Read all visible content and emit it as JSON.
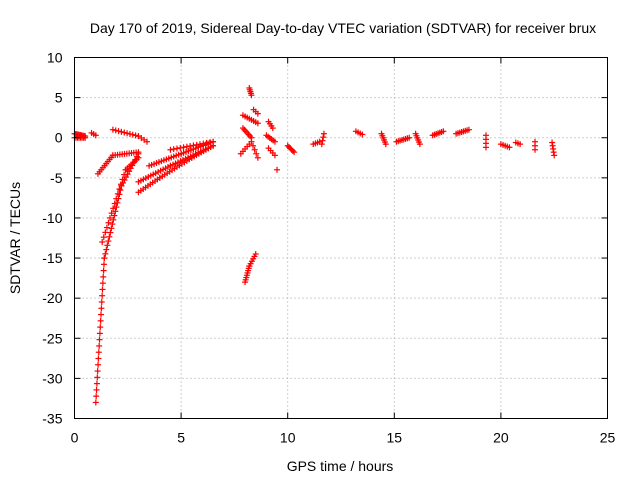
{
  "chart_data": {
    "type": "scatter",
    "title": "Day 170 of 2019, Sidereal Day-to-day VTEC variation (SDTVAR) for receiver brux",
    "xlabel": "GPS time / hours",
    "ylabel": "SDTVAR / TECUs",
    "xlim": [
      0,
      25
    ],
    "ylim": [
      -35,
      10
    ],
    "xticks": [
      0,
      5,
      10,
      15,
      20,
      25
    ],
    "yticks": [
      10,
      5,
      0,
      -5,
      -10,
      -15,
      -20,
      -25,
      -30,
      -35
    ],
    "xtick_labels": [
      "0",
      "5",
      "10",
      "15",
      "20",
      "25"
    ],
    "ytick_labels": [
      "10",
      "5",
      "0",
      "-5",
      "-10",
      "-15",
      "-20",
      "-25",
      "-30",
      "-35"
    ],
    "grid": true,
    "marker": "+",
    "color": "#ff0000",
    "segments": [
      {
        "x0": 0.0,
        "y0": 0.5,
        "x1": 0.5,
        "y1": 0.2,
        "n": 10
      },
      {
        "x0": 0.0,
        "y0": 0.0,
        "x1": 0.5,
        "y1": 0.0,
        "n": 8
      },
      {
        "x0": 0.8,
        "y0": 0.6,
        "x1": 1.0,
        "y1": 0.3,
        "n": 3
      },
      {
        "x0": 1.0,
        "y0": -33.0,
        "x1": 1.4,
        "y1": -15.0,
        "n": 24
      },
      {
        "x0": 1.4,
        "y0": -15.0,
        "x1": 2.2,
        "y1": -6.0,
        "n": 18
      },
      {
        "x0": 2.2,
        "y0": -6.0,
        "x1": 3.0,
        "y1": -2.0,
        "n": 12
      },
      {
        "x0": 1.3,
        "y0": -13.0,
        "x1": 2.4,
        "y1": -4.0,
        "n": 16
      },
      {
        "x0": 2.4,
        "y0": -4.0,
        "x1": 3.0,
        "y1": -2.5,
        "n": 8
      },
      {
        "x0": 1.1,
        "y0": -4.5,
        "x1": 1.8,
        "y1": -2.2,
        "n": 10
      },
      {
        "x0": 1.8,
        "y0": -2.2,
        "x1": 3.0,
        "y1": -1.8,
        "n": 12
      },
      {
        "x0": 1.8,
        "y0": 1.0,
        "x1": 3.0,
        "y1": 0.2,
        "n": 10
      },
      {
        "x0": 3.0,
        "y0": 0.2,
        "x1": 3.4,
        "y1": -0.5,
        "n": 4
      },
      {
        "x0": 3.0,
        "y0": -6.8,
        "x1": 4.0,
        "y1": -5.0,
        "n": 10
      },
      {
        "x0": 4.0,
        "y0": -5.0,
        "x1": 5.5,
        "y1": -2.5,
        "n": 14
      },
      {
        "x0": 5.5,
        "y0": -2.5,
        "x1": 6.5,
        "y1": -1.0,
        "n": 10
      },
      {
        "x0": 3.0,
        "y0": -5.5,
        "x1": 4.5,
        "y1": -3.5,
        "n": 14
      },
      {
        "x0": 4.5,
        "y0": -3.5,
        "x1": 6.5,
        "y1": -1.0,
        "n": 18
      },
      {
        "x0": 3.5,
        "y0": -3.5,
        "x1": 5.0,
        "y1": -2.0,
        "n": 14
      },
      {
        "x0": 5.0,
        "y0": -2.0,
        "x1": 6.5,
        "y1": -0.5,
        "n": 14
      },
      {
        "x0": 4.5,
        "y0": -1.5,
        "x1": 6.5,
        "y1": -0.5,
        "n": 14
      },
      {
        "x0": 8.0,
        "y0": -18.0,
        "x1": 8.2,
        "y1": -16.0,
        "n": 8
      },
      {
        "x0": 8.2,
        "y0": -16.0,
        "x1": 8.5,
        "y1": -14.5,
        "n": 6
      },
      {
        "x0": 8.2,
        "y0": 6.2,
        "x1": 8.3,
        "y1": 5.3,
        "n": 5
      },
      {
        "x0": 8.4,
        "y0": 3.5,
        "x1": 8.6,
        "y1": 3.0,
        "n": 3
      },
      {
        "x0": 7.9,
        "y0": 2.8,
        "x1": 8.6,
        "y1": 1.8,
        "n": 8
      },
      {
        "x0": 7.9,
        "y0": 1.2,
        "x1": 8.3,
        "y1": 0.0,
        "n": 7
      },
      {
        "x0": 7.8,
        "y0": -2.0,
        "x1": 8.2,
        "y1": -0.8,
        "n": 5
      },
      {
        "x0": 8.3,
        "y0": -0.5,
        "x1": 8.6,
        "y1": -2.5,
        "n": 5
      },
      {
        "x0": 9.1,
        "y0": 2.0,
        "x1": 9.3,
        "y1": 1.2,
        "n": 4
      },
      {
        "x0": 9.0,
        "y0": 0.3,
        "x1": 9.4,
        "y1": -0.5,
        "n": 6
      },
      {
        "x0": 9.1,
        "y0": -1.3,
        "x1": 9.4,
        "y1": -2.2,
        "n": 4
      },
      {
        "x0": 9.5,
        "y0": -4.0,
        "x1": 9.5,
        "y1": -4.0,
        "n": 1
      },
      {
        "x0": 10.0,
        "y0": -1.0,
        "x1": 10.3,
        "y1": -1.8,
        "n": 6
      },
      {
        "x0": 11.2,
        "y0": -0.8,
        "x1": 11.5,
        "y1": -0.5,
        "n": 4
      },
      {
        "x0": 11.6,
        "y0": -0.8,
        "x1": 11.7,
        "y1": 0.5,
        "n": 4
      },
      {
        "x0": 13.2,
        "y0": 0.8,
        "x1": 13.5,
        "y1": 0.4,
        "n": 4
      },
      {
        "x0": 14.4,
        "y0": 0.5,
        "x1": 14.6,
        "y1": -0.8,
        "n": 6
      },
      {
        "x0": 15.1,
        "y0": -0.5,
        "x1": 15.7,
        "y1": 0.0,
        "n": 8
      },
      {
        "x0": 16.0,
        "y0": 0.5,
        "x1": 16.2,
        "y1": -0.8,
        "n": 6
      },
      {
        "x0": 16.8,
        "y0": 0.3,
        "x1": 17.3,
        "y1": 0.8,
        "n": 7
      },
      {
        "x0": 17.9,
        "y0": 0.5,
        "x1": 18.5,
        "y1": 1.0,
        "n": 8
      },
      {
        "x0": 19.3,
        "y0": 0.3,
        "x1": 19.3,
        "y1": -1.2,
        "n": 4
      },
      {
        "x0": 20.0,
        "y0": -0.8,
        "x1": 20.4,
        "y1": -1.2,
        "n": 5
      },
      {
        "x0": 20.7,
        "y0": -0.6,
        "x1": 20.9,
        "y1": -0.8,
        "n": 3
      },
      {
        "x0": 21.6,
        "y0": -0.5,
        "x1": 21.6,
        "y1": -1.5,
        "n": 3
      },
      {
        "x0": 22.4,
        "y0": -0.6,
        "x1": 22.5,
        "y1": -2.2,
        "n": 5
      }
    ]
  }
}
